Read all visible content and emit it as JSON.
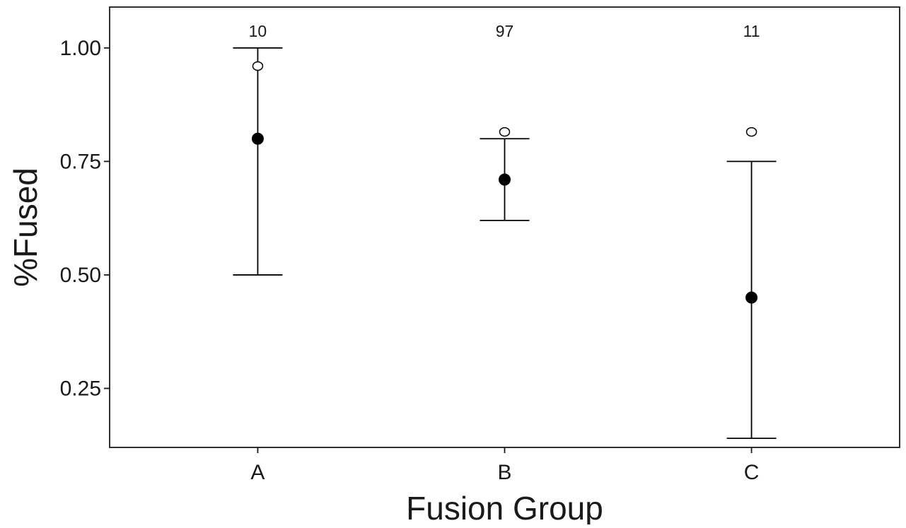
{
  "chart_data": {
    "type": "scatter",
    "title": "",
    "xlabel": "Fusion Group",
    "ylabel": "%Fused",
    "categories": [
      "A",
      "B",
      "C"
    ],
    "ylim": [
      0.12,
      1.09
    ],
    "yticks": [
      0.25,
      0.5,
      0.75,
      1.0
    ],
    "ytick_labels": [
      "0.25",
      "0.50",
      "0.75",
      "1.00"
    ],
    "grid": false,
    "legend": "none",
    "sample_sizes": [
      "10",
      "97",
      "11"
    ],
    "series": [
      {
        "role": "estimate_with_interval",
        "marker": "filled-circle",
        "color": "#000000",
        "values": [
          0.8,
          0.71,
          0.45
        ],
        "lower": [
          0.5,
          0.62,
          0.14
        ],
        "upper": [
          1.0,
          0.8,
          0.75
        ]
      },
      {
        "role": "reference_point",
        "marker": "open-circle",
        "color": "#000000",
        "values": [
          0.96,
          0.815,
          0.815
        ]
      }
    ]
  }
}
